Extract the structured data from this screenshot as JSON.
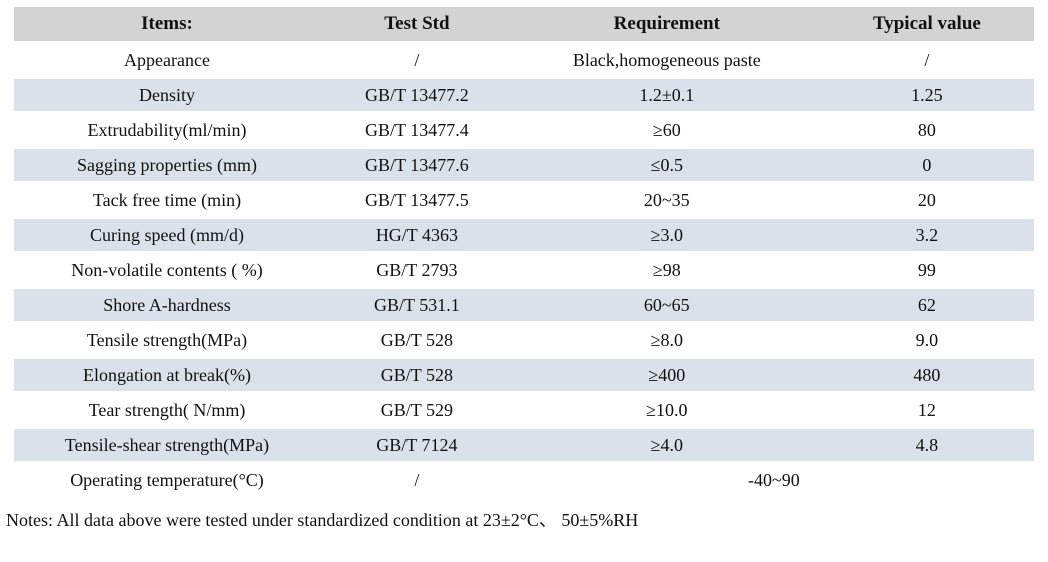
{
  "table": {
    "columns": [
      {
        "label": "Items:"
      },
      {
        "label": "Test Std"
      },
      {
        "label": "Requirement"
      },
      {
        "label": "Typical value"
      }
    ],
    "rows": [
      {
        "item": "Appearance",
        "test_std": "/",
        "requirement": "Black,homogeneous paste",
        "typical_value": "/",
        "shaded": false
      },
      {
        "item": "Density",
        "test_std": "GB/T 13477.2",
        "requirement": "1.2±0.1",
        "typical_value": "1.25",
        "shaded": true
      },
      {
        "item": "Extrudability(ml/min)",
        "test_std": "GB/T 13477.4",
        "requirement": "≥60",
        "typical_value": "80",
        "shaded": false
      },
      {
        "item": "Sagging properties (mm)",
        "test_std": "GB/T 13477.6",
        "requirement": "≤0.5",
        "typical_value": "0",
        "shaded": true
      },
      {
        "item": "Tack free time (min)",
        "test_std": "GB/T 13477.5",
        "requirement": "20~35",
        "typical_value": "20",
        "shaded": false
      },
      {
        "item": "Curing speed (mm/d)",
        "test_std": "HG/T 4363",
        "requirement": "≥3.0",
        "typical_value": "3.2",
        "shaded": true
      },
      {
        "item": "Non-volatile contents ( %)",
        "test_std": "GB/T 2793",
        "requirement": "≥98",
        "typical_value": "99",
        "shaded": false
      },
      {
        "item": "Shore A-hardness",
        "test_std": "GB/T 531.1",
        "requirement": "60~65",
        "typical_value": "62",
        "shaded": true
      },
      {
        "item": "Tensile strength(MPa)",
        "test_std": "GB/T 528",
        "requirement": "≥8.0",
        "typical_value": "9.0",
        "shaded": false
      },
      {
        "item": "Elongation at break(%)",
        "test_std": "GB/T 528",
        "requirement": "≥400",
        "typical_value": "480",
        "shaded": true
      },
      {
        "item": "Tear strength( N/mm)",
        "test_std": "GB/T 529",
        "requirement": "≥10.0",
        "typical_value": "12",
        "shaded": false
      },
      {
        "item": "Tensile-shear strength(MPa)",
        "test_std": "GB/T 7124",
        "requirement": "≥4.0",
        "typical_value": "4.8",
        "shaded": true
      },
      {
        "item": "Operating temperature(°C)",
        "test_std": "/",
        "requirement": "-40~90",
        "typical_value": null,
        "requirement_colspan": 2,
        "shaded": false
      }
    ],
    "notes": "Notes: All data above were tested under standardized condition at 23±2°C、 50±5%RH"
  },
  "colors": {
    "header_bg": "#d3d3d3",
    "shaded_row_bg": "#dae1eb",
    "text": "#111111"
  }
}
